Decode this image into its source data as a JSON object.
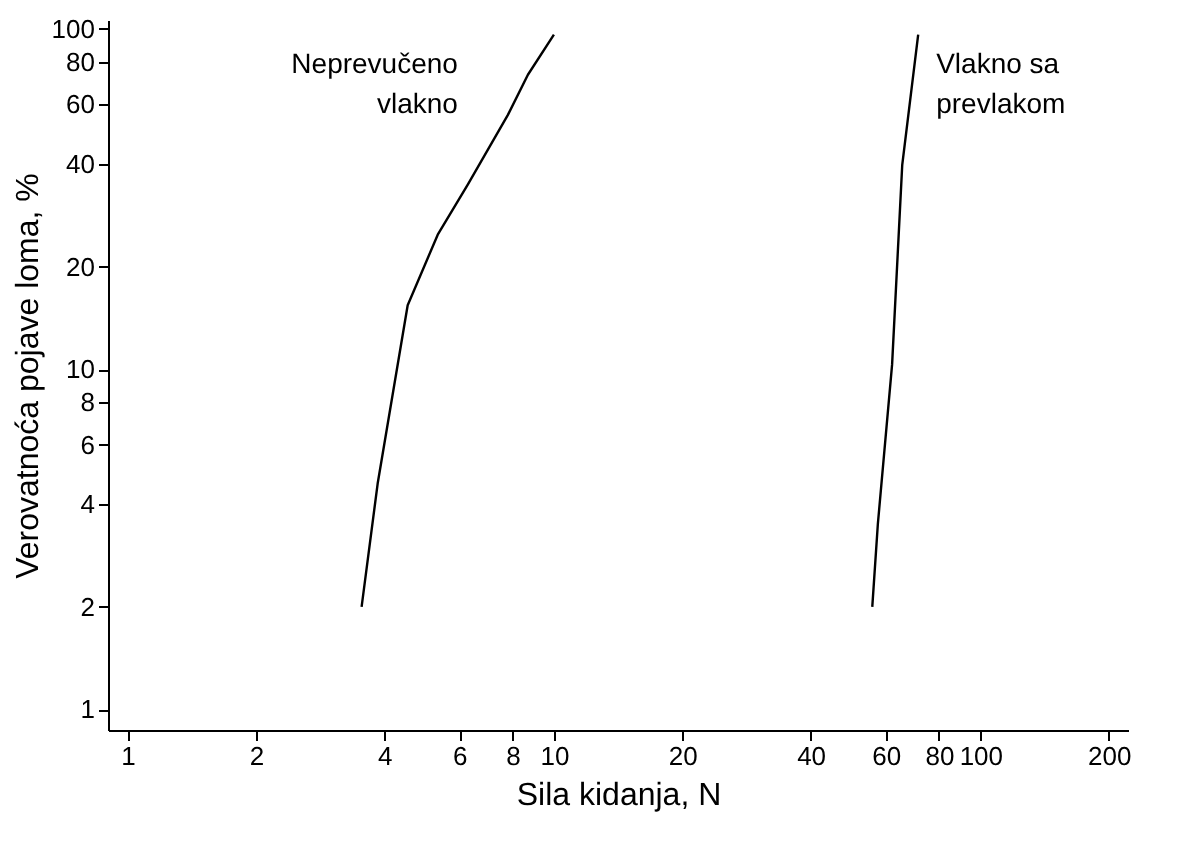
{
  "chart_data": {
    "type": "line",
    "xlabel": "Sila kidanja, N",
    "ylabel": "Verovatnoća pojave loma, %",
    "log": "xy",
    "grid": false,
    "marker": "none",
    "line_style": "solid",
    "xlim": [
      0.9,
      222
    ],
    "ylim": [
      0.87,
      106
    ],
    "xticks": [
      1,
      2,
      4,
      6,
      8,
      10,
      20,
      40,
      60,
      80,
      100,
      200
    ],
    "yticks": [
      1,
      2,
      4,
      6,
      8,
      10,
      20,
      40,
      60,
      80,
      100
    ],
    "series": [
      {
        "color": "#000000",
        "x": [
          3.54,
          3.86,
          4.54,
          5.34,
          6.28,
          7.8,
          8.69,
          10
        ],
        "values": [
          2,
          4.6,
          15.4,
          24.8,
          34.8,
          55.8,
          73.2,
          96
        ]
      },
      {
        "color": "#000000",
        "x": [
          55.8,
          57.5,
          62.1,
          65.6,
          71.5
        ],
        "values": [
          2,
          3.5,
          10.3,
          39.8,
          96
        ]
      }
    ],
    "annotations": [
      "Neprevučeno\nvlakno",
      "Vlakno sa\nprevlakom"
    ]
  }
}
